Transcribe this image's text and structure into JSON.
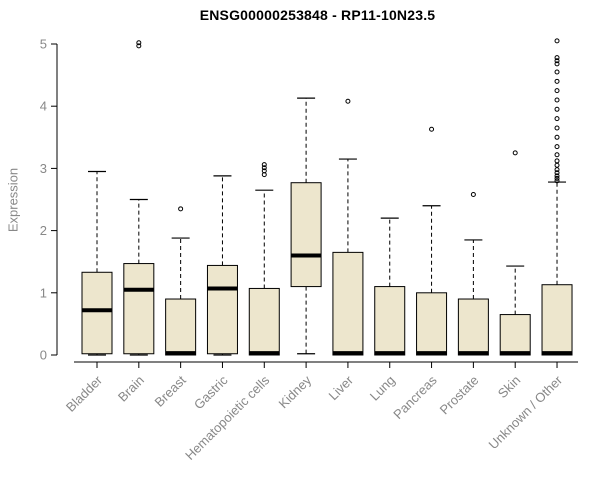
{
  "chart_data": {
    "type": "boxplot",
    "title": "ENSG00000253848 - RP11-10N23.5",
    "ylabel": "Expression",
    "xlabel": "",
    "ylim": [
      0,
      5
    ],
    "yticks": [
      0,
      1,
      2,
      3,
      4,
      5
    ],
    "grid": false,
    "legend": "none",
    "categories": [
      "Bladder",
      "Brain",
      "Breast",
      "Gastric",
      "Hematopoietic cells",
      "Kidney",
      "Liver",
      "Lung",
      "Pancreas",
      "Prostate",
      "Skin",
      "Unknown / Other"
    ],
    "series": [
      {
        "name": "Bladder",
        "whisker_low": 0,
        "q1": 0.02,
        "median": 0.72,
        "q3": 1.33,
        "whisker_high": 2.95,
        "outliers": []
      },
      {
        "name": "Brain",
        "whisker_low": 0,
        "q1": 0.02,
        "median": 1.05,
        "q3": 1.47,
        "whisker_high": 2.5,
        "outliers": [
          4.97,
          5.02
        ]
      },
      {
        "name": "Breast",
        "whisker_low": 0,
        "q1": 0,
        "median": 0.03,
        "q3": 0.9,
        "whisker_high": 1.88,
        "outliers": [
          2.35
        ]
      },
      {
        "name": "Gastric",
        "whisker_low": 0,
        "q1": 0.02,
        "median": 1.07,
        "q3": 1.44,
        "whisker_high": 2.88,
        "outliers": []
      },
      {
        "name": "Hematopoietic cells",
        "whisker_low": 0,
        "q1": 0,
        "median": 0.03,
        "q3": 1.07,
        "whisker_high": 2.65,
        "outliers": [
          2.9,
          2.96,
          3.01,
          3.06
        ]
      },
      {
        "name": "Kidney",
        "whisker_low": 0.02,
        "q1": 1.1,
        "median": 1.6,
        "q3": 2.77,
        "whisker_high": 4.13,
        "outliers": []
      },
      {
        "name": "Liver",
        "whisker_low": 0,
        "q1": 0,
        "median": 0.03,
        "q3": 1.65,
        "whisker_high": 3.15,
        "outliers": [
          4.08
        ]
      },
      {
        "name": "Lung",
        "whisker_low": 0,
        "q1": 0,
        "median": 0.03,
        "q3": 1.1,
        "whisker_high": 2.2,
        "outliers": []
      },
      {
        "name": "Pancreas",
        "whisker_low": 0,
        "q1": 0,
        "median": 0.03,
        "q3": 1.0,
        "whisker_high": 2.4,
        "outliers": [
          3.63
        ]
      },
      {
        "name": "Prostate",
        "whisker_low": 0,
        "q1": 0,
        "median": 0.03,
        "q3": 0.9,
        "whisker_high": 1.85,
        "outliers": [
          2.58
        ]
      },
      {
        "name": "Skin",
        "whisker_low": 0,
        "q1": 0,
        "median": 0.03,
        "q3": 0.65,
        "whisker_high": 1.43,
        "outliers": [
          3.25
        ]
      },
      {
        "name": "Unknown / Other",
        "whisker_low": 0,
        "q1": 0,
        "median": 0.03,
        "q3": 1.13,
        "whisker_high": 2.78,
        "outliers": [
          2.8,
          2.84,
          2.88,
          2.93,
          2.98,
          3.05,
          3.12,
          3.22,
          3.35,
          3.5,
          3.65,
          3.8,
          3.95,
          4.1,
          4.25,
          4.4,
          4.55,
          4.68,
          4.73,
          4.78,
          5.05
        ]
      }
    ],
    "colors": {
      "box_fill": "#ede6cd",
      "box_stroke": "#000000",
      "median": "#000000",
      "whisker": "#000000",
      "axis_line": "#000000",
      "axis_text": "#888888",
      "title": "#000000",
      "background": "#ffffff"
    }
  }
}
